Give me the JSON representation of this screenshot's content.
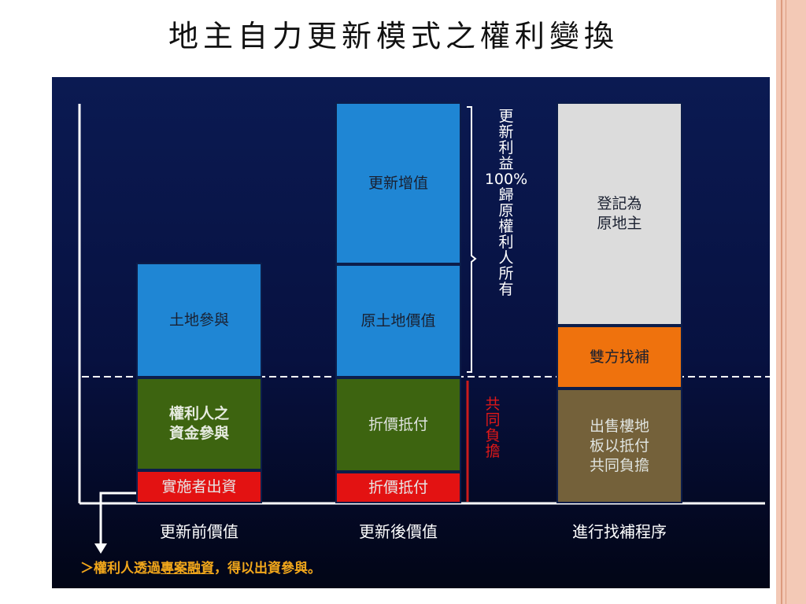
{
  "slide": {
    "title": "地主自力更新模式之權利變換"
  },
  "diagram": {
    "columns": {
      "before": {
        "land_participation": "土地參與",
        "owner_capital_line1": "權利人之",
        "owner_capital_line2": "資金參與",
        "implementer_funding": "實施者出資",
        "caption": "更新前價值"
      },
      "after": {
        "renewal_increment": "更新增值",
        "original_land_value": "原土地價值",
        "offset_payment": "折價抵付",
        "offset_payment_bottom": "折價抵付",
        "caption": "更新後價值"
      },
      "settlement": {
        "registered_line1": "登記為",
        "registered_line2": "原地主",
        "mutual_compensation": "雙方找補",
        "sale_line1": "出售樓地",
        "sale_line2": "板以抵付",
        "sale_line3": "共同負擔",
        "caption": "進行找補程序"
      }
    },
    "brace_annotation": {
      "line1": "更",
      "line2": "新",
      "line3": "利",
      "line4": "益",
      "line5": "100%",
      "line6": "歸",
      "line7": "原",
      "line8": "權",
      "line9": "利",
      "line10": "人",
      "line11": "所",
      "line12": "有"
    },
    "shared_burden": {
      "line1": "共",
      "line2": "同",
      "line3": "負",
      "line4": "擔"
    },
    "footnote": {
      "prefix": "＞權利人",
      "part1": "透過",
      "underlined": "專案融資",
      "suffix": "，得以出資參與。"
    }
  },
  "colors": {
    "panel_background": "#071140",
    "land_value_blue": "#1f86d4",
    "capital_green": "#3d6410",
    "funding_red": "#e31212",
    "registered_gray": "#dcdcdc",
    "compensation_orange": "#ef720d",
    "sale_brown": "#74613a",
    "footnote_orange": "#f2a71b",
    "shared_burden_red": "#e01818",
    "slide_rail": "#f3c9b6"
  }
}
